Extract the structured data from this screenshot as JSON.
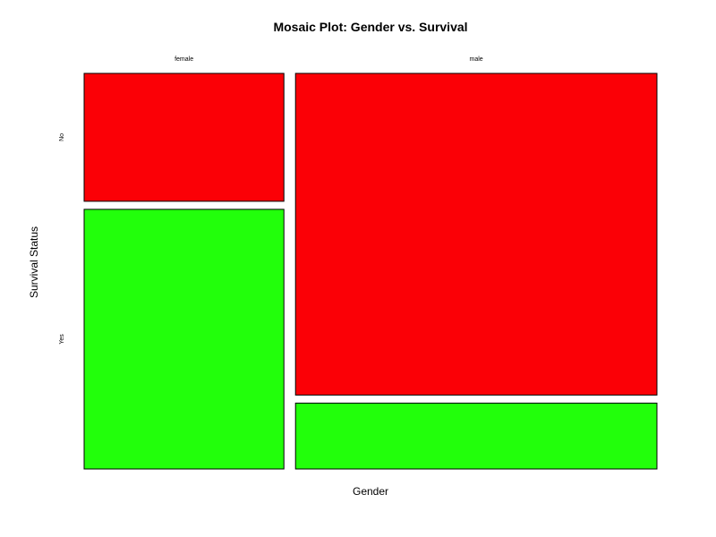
{
  "chart_data": {
    "type": "mosaic",
    "title": "Mosaic Plot: Gender vs. Survival",
    "xlabel": "Gender",
    "ylabel": "Survival Status",
    "x_categories": [
      "female",
      "male"
    ],
    "y_categories": [
      "No",
      "Yes"
    ],
    "x_proportions": [
      0.356,
      0.644
    ],
    "conditional_proportions": {
      "female": {
        "No": 0.33,
        "Yes": 0.67
      },
      "male": {
        "No": 0.83,
        "Yes": 0.17
      }
    },
    "colors": {
      "No": "#fb0006",
      "Yes": "#22ff0b"
    },
    "grid": false,
    "legend": "none"
  }
}
